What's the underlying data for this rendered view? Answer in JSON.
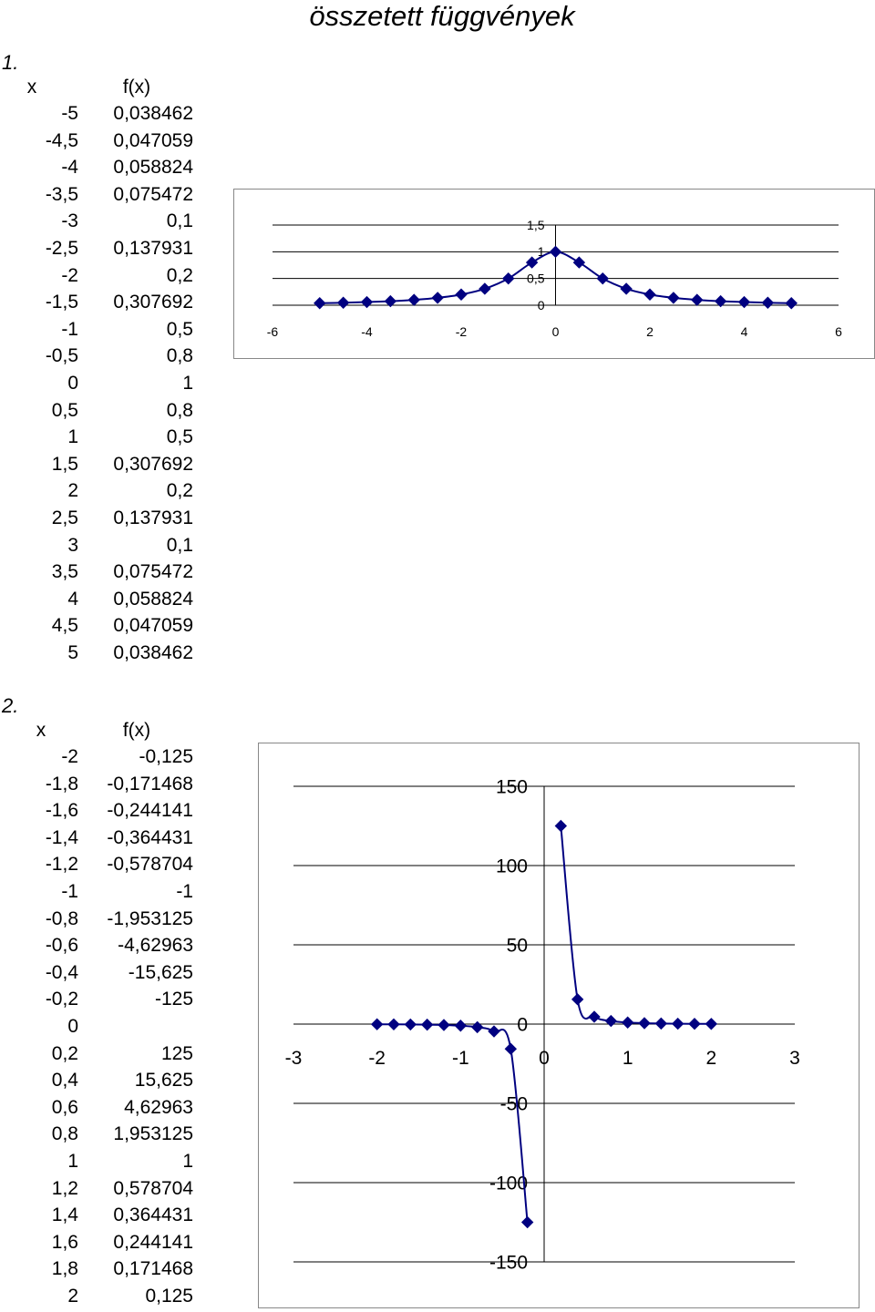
{
  "page_title": "összetett függvények",
  "section1": {
    "number": "1.",
    "header_x": "x",
    "header_fx": "f(x)",
    "rows": [
      [
        "-5",
        "0,038462"
      ],
      [
        "-4,5",
        "0,047059"
      ],
      [
        "-4",
        "0,058824"
      ],
      [
        "-3,5",
        "0,075472"
      ],
      [
        "-3",
        "0,1"
      ],
      [
        "-2,5",
        "0,137931"
      ],
      [
        "-2",
        "0,2"
      ],
      [
        "-1,5",
        "0,307692"
      ],
      [
        "-1",
        "0,5"
      ],
      [
        "-0,5",
        "0,8"
      ],
      [
        "0",
        "1"
      ],
      [
        "0,5",
        "0,8"
      ],
      [
        "1",
        "0,5"
      ],
      [
        "1,5",
        "0,307692"
      ],
      [
        "2",
        "0,2"
      ],
      [
        "2,5",
        "0,137931"
      ],
      [
        "3",
        "0,1"
      ],
      [
        "3,5",
        "0,075472"
      ],
      [
        "4",
        "0,058824"
      ],
      [
        "4,5",
        "0,047059"
      ],
      [
        "5",
        "0,038462"
      ]
    ]
  },
  "section2": {
    "number": "2.",
    "header_x": "x",
    "header_fx": "f(x)",
    "rows": [
      [
        "-2",
        "-0,125"
      ],
      [
        "-1,8",
        "-0,171468"
      ],
      [
        "-1,6",
        "-0,244141"
      ],
      [
        "-1,4",
        "-0,364431"
      ],
      [
        "-1,2",
        "-0,578704"
      ],
      [
        "-1",
        "-1"
      ],
      [
        "-0,8",
        "-1,953125"
      ],
      [
        "-0,6",
        "-4,62963"
      ],
      [
        "-0,4",
        "-15,625"
      ],
      [
        "-0,2",
        "-125"
      ],
      [
        "0",
        ""
      ],
      [
        "0,2",
        "125"
      ],
      [
        "0,4",
        "15,625"
      ],
      [
        "0,6",
        "4,62963"
      ],
      [
        "0,8",
        "1,953125"
      ],
      [
        "1",
        "1"
      ],
      [
        "1,2",
        "0,578704"
      ],
      [
        "1,4",
        "0,364431"
      ],
      [
        "1,6",
        "0,244141"
      ],
      [
        "1,8",
        "0,171468"
      ],
      [
        "2",
        "0,125"
      ]
    ]
  },
  "chart_data": [
    {
      "type": "line",
      "marker": "diamond",
      "color": "#000080",
      "xlim": [
        -6,
        6
      ],
      "ylim": [
        0,
        1.5
      ],
      "x_ticks": [
        "-6",
        "-4",
        "-2",
        "0",
        "2",
        "4",
        "6"
      ],
      "y_ticks": [
        "0",
        "0,5",
        "1",
        "1,5"
      ],
      "grid": "horizontal",
      "x": [
        -5,
        -4.5,
        -4,
        -3.5,
        -3,
        -2.5,
        -2,
        -1.5,
        -1,
        -0.5,
        0,
        0.5,
        1,
        1.5,
        2,
        2.5,
        3,
        3.5,
        4,
        4.5,
        5
      ],
      "y": [
        0.038462,
        0.047059,
        0.058824,
        0.075472,
        0.1,
        0.137931,
        0.2,
        0.307692,
        0.5,
        0.8,
        1,
        0.8,
        0.5,
        0.307692,
        0.2,
        0.137931,
        0.1,
        0.075472,
        0.058824,
        0.047059,
        0.038462
      ]
    },
    {
      "type": "line",
      "marker": "diamond",
      "color": "#000080",
      "xlim": [
        -3,
        3
      ],
      "ylim": [
        -150,
        150
      ],
      "x_ticks": [
        "-3",
        "-2",
        "-1",
        "0",
        "1",
        "2",
        "3"
      ],
      "y_ticks": [
        "-150",
        "-100",
        "-50",
        "0",
        "50",
        "100",
        "150"
      ],
      "grid": "horizontal",
      "segments": [
        {
          "x": [
            -2,
            -1.8,
            -1.6,
            -1.4,
            -1.2,
            -1,
            -0.8,
            -0.6,
            -0.4,
            -0.2
          ],
          "y": [
            -0.125,
            -0.171468,
            -0.244141,
            -0.364431,
            -0.578704,
            -1,
            -1.953125,
            -4.62963,
            -15.625,
            -125
          ]
        },
        {
          "x": [
            0.2,
            0.4,
            0.6,
            0.8,
            1,
            1.2,
            1.4,
            1.6,
            1.8,
            2
          ],
          "y": [
            125,
            15.625,
            4.62963,
            1.953125,
            1,
            0.578704,
            0.364431,
            0.244141,
            0.171468,
            0.125
          ]
        }
      ]
    }
  ]
}
